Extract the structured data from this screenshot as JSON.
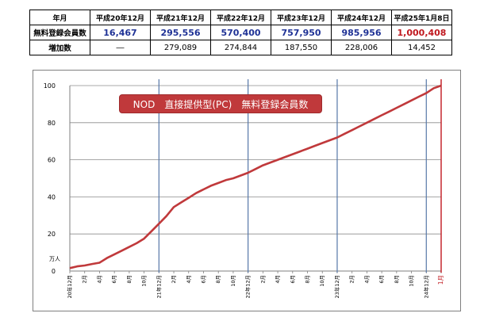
{
  "table": {
    "header": [
      "年月",
      "平成20年12月",
      "平成21年12月",
      "平成22年12月",
      "平成23年12月",
      "平成24年12月",
      "平成25年1月8日"
    ],
    "rows": [
      {
        "label": "無料登録会員数",
        "cells": [
          "16,467",
          "295,556",
          "570,400",
          "757,950",
          "985,956",
          "1,000,408"
        ]
      },
      {
        "label": "増加数",
        "cells": [
          "―",
          "279,089",
          "274,844",
          "187,550",
          "228,006",
          "14,452"
        ]
      }
    ]
  },
  "chart_data": {
    "type": "line",
    "title": "NOD　直接提供型(PC)　無料登録会員数",
    "ylabel": "万人",
    "ylim": [
      0,
      100
    ],
    "yticks": [
      0,
      20,
      40,
      60,
      80,
      100
    ],
    "x_tick_labels": [
      "20年12月",
      "2月",
      "4月",
      "6月",
      "8月",
      "10月",
      "21年12月",
      "2月",
      "4月",
      "6月",
      "8月",
      "10月",
      "22年12月",
      "2月",
      "4月",
      "6月",
      "8月",
      "10月",
      "23年12月",
      "2月",
      "4月",
      "6月",
      "8月",
      "10月",
      "24年12月",
      "1月"
    ],
    "series": [
      {
        "values": [
          1.6,
          2.5,
          3.0,
          3.8,
          4.5,
          7.0,
          9.0,
          11.0,
          13.0,
          15.0,
          17.5,
          21.5,
          25.5,
          29.6,
          34.5,
          37.0,
          39.5,
          42.0,
          44.0,
          46.0,
          47.5,
          49.0,
          50.0,
          51.5,
          53.0,
          55.0,
          57.0,
          58.5,
          60.0,
          61.5,
          63.0,
          64.5,
          66.0,
          67.5,
          69.0,
          70.5,
          72.0,
          74.0,
          76.0,
          78.0,
          80.0,
          82.0,
          84.0,
          86.0,
          88.0,
          90.0,
          92.0,
          94.0,
          96.0,
          98.6,
          100.0
        ]
      }
    ],
    "series_color": "#c0393b",
    "grid": true
  }
}
